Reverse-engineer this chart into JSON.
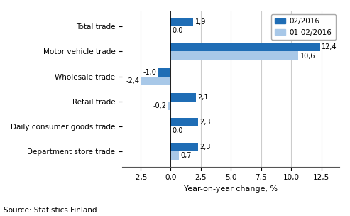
{
  "categories": [
    "Total trade",
    "Motor vehicle trade",
    "Wholesale trade",
    "Retail trade",
    "Daily consumer goods trade",
    "Department store trade"
  ],
  "series1_label": "02/2016",
  "series2_label": "01-02/2016",
  "series1_values": [
    1.9,
    12.4,
    -1.0,
    2.1,
    2.3,
    2.3
  ],
  "series2_values": [
    0.0,
    10.6,
    -2.4,
    -0.2,
    0.0,
    0.7
  ],
  "series1_color": "#1f6db5",
  "series2_color": "#a8c8e8",
  "xlabel": "Year-on-year change, %",
  "xlim": [
    -4.0,
    14.0
  ],
  "xticks": [
    -2.5,
    0.0,
    2.5,
    5.0,
    7.5,
    10.0,
    12.5
  ],
  "xtick_labels": [
    "-2,5",
    "0,0",
    "2,5",
    "5,0",
    "7,5",
    "10,0",
    "12,5"
  ],
  "source_text": "Source: Statistics Finland",
  "bar_height": 0.35,
  "background_color": "#ffffff",
  "grid_color": "#cccccc"
}
